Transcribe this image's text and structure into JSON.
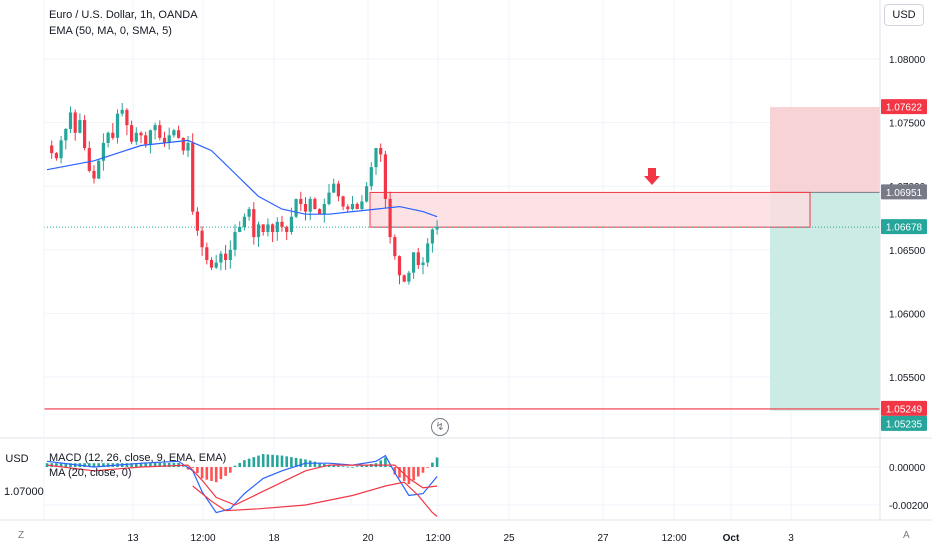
{
  "header": {
    "symbol_title": "Euro / U.S. Dollar, 1h, OANDA",
    "indicator_label": "EMA (50, MA, 0, SMA, 5)"
  },
  "currency_button": "USD",
  "macd_panel": {
    "currency_label": "USD",
    "legend_macd": "MACD (12, 26, close, 9, EMA, EMA)",
    "legend_ma": "MA (20, close, 0)",
    "left_price": "1.07000"
  },
  "corner": {
    "left": "Z",
    "right": "A"
  },
  "alert_icon": "alarm-clock-icon",
  "colors": {
    "up": "#26a69a",
    "down": "#f23645",
    "ema": "#2962ff",
    "stop_zone": "#f7d3d5",
    "target_zone": "#cbebe4",
    "entry_box": "#fddde0",
    "macd_line": "#2962ff",
    "signal_line": "#f23645"
  },
  "chart_data": [
    {
      "type": "candlestick",
      "title": "Euro / U.S. Dollar, 1h, OANDA",
      "xlabel": "",
      "ylabel": "",
      "x_tick_labels": [
        "13",
        "12:00",
        "18",
        "20",
        "12:00",
        "25",
        "27",
        "12:00",
        "Oct",
        "3"
      ],
      "y_ticks": [
        "1.08000",
        "1.07500",
        "1.07000",
        "1.06500",
        "1.06000",
        "1.05500"
      ],
      "ylim": [
        1.0508,
        1.0845
      ],
      "price_path": [
        [
          0,
          1.0732
        ],
        [
          1,
          1.0726
        ],
        [
          2,
          1.0722
        ],
        [
          3,
          1.0736
        ],
        [
          4,
          1.0745
        ],
        [
          5,
          1.0758
        ],
        [
          6,
          1.0742
        ],
        [
          7,
          1.0752
        ],
        [
          8,
          1.073
        ],
        [
          9,
          1.0712
        ],
        [
          10,
          1.0706
        ],
        [
          11,
          1.072
        ],
        [
          12,
          1.0734
        ],
        [
          13,
          1.0742
        ],
        [
          14,
          1.0738
        ],
        [
          15,
          1.0757
        ],
        [
          16,
          1.076
        ],
        [
          17,
          1.0748
        ],
        [
          18,
          1.0735
        ],
        [
          19,
          1.0742
        ],
        [
          20,
          1.074
        ],
        [
          21,
          1.0733
        ],
        [
          22,
          1.0744
        ],
        [
          23,
          1.0748
        ],
        [
          24,
          1.0738
        ],
        [
          25,
          1.0734
        ],
        [
          26,
          1.074
        ],
        [
          27,
          1.0744
        ],
        [
          28,
          1.0738
        ],
        [
          29,
          1.0728
        ],
        [
          30,
          1.0734
        ],
        [
          31,
          1.068
        ],
        [
          32,
          1.0665
        ],
        [
          33,
          1.0652
        ],
        [
          34,
          1.0642
        ],
        [
          35,
          1.0636
        ],
        [
          36,
          1.064
        ],
        [
          37,
          1.0647
        ],
        [
          38,
          1.0642
        ],
        [
          39,
          1.065
        ],
        [
          40,
          1.0664
        ],
        [
          41,
          1.0668
        ],
        [
          42,
          1.0676
        ],
        [
          43,
          1.0682
        ],
        [
          44,
          1.066
        ],
        [
          45,
          1.067
        ],
        [
          46,
          1.0664
        ],
        [
          47,
          1.067
        ],
        [
          48,
          1.0664
        ],
        [
          49,
          1.0672
        ],
        [
          50,
          1.0668
        ],
        [
          51,
          1.0664
        ],
        [
          52,
          1.0676
        ],
        [
          53,
          1.069
        ],
        [
          54,
          1.0686
        ],
        [
          55,
          1.068
        ],
        [
          56,
          1.069
        ],
        [
          57,
          1.0682
        ],
        [
          58,
          1.0678
        ],
        [
          59,
          1.0686
        ],
        [
          60,
          1.0695
        ],
        [
          61,
          1.0702
        ],
        [
          62,
          1.0692
        ],
        [
          63,
          1.0684
        ],
        [
          64,
          1.0682
        ],
        [
          65,
          1.0686
        ],
        [
          66,
          1.0682
        ],
        [
          67,
          1.0688
        ],
        [
          68,
          1.07
        ],
        [
          69,
          1.0715
        ],
        [
          70,
          1.073
        ],
        [
          71,
          1.0725
        ],
        [
          72,
          1.069
        ],
        [
          73,
          1.066
        ],
        [
          74,
          1.0645
        ],
        [
          75,
          1.063
        ],
        [
          76,
          1.0625
        ],
        [
          77,
          1.0632
        ],
        [
          78,
          1.0648
        ],
        [
          79,
          1.0638
        ],
        [
          80,
          1.064
        ],
        [
          81,
          1.0655
        ],
        [
          82,
          1.0666
        ],
        [
          83,
          1.0668
        ]
      ],
      "ema_50": [
        [
          0,
          1.0713
        ],
        [
          10,
          1.072
        ],
        [
          20,
          1.0732
        ],
        [
          30,
          1.0736
        ],
        [
          35,
          1.0728
        ],
        [
          40,
          1.071
        ],
        [
          45,
          1.0692
        ],
        [
          50,
          1.0682
        ],
        [
          55,
          1.0678
        ],
        [
          60,
          1.0678
        ],
        [
          65,
          1.068
        ],
        [
          70,
          1.0682
        ],
        [
          75,
          1.0684
        ],
        [
          80,
          1.068
        ],
        [
          83,
          1.0676
        ]
      ],
      "current_price": 1.06678,
      "price_labels": [
        {
          "value": "1.07622",
          "kind": "stop"
        },
        {
          "value": "1.06951",
          "kind": "entry"
        },
        {
          "value": "1.06678",
          "kind": "current"
        },
        {
          "value": "1.05249",
          "kind": "support"
        },
        {
          "value": "1.05235",
          "kind": "target"
        }
      ],
      "position": {
        "side": "short",
        "stop": 1.07622,
        "entry": 1.06951,
        "target": 1.05235
      },
      "zone_box": {
        "top": 1.06951,
        "bottom": 1.06678
      },
      "horizontal_line": 1.05249,
      "grid": true
    },
    {
      "type": "bar",
      "title": "MACD (12, 26, close, 9, EMA, EMA)",
      "y_ticks": [
        "0.00000",
        "-0.00200"
      ],
      "ylim": [
        -0.0027,
        0.001
      ],
      "macd_line": [
        [
          0,
          0.0003
        ],
        [
          10,
          0.0
        ],
        [
          20,
          0.0002
        ],
        [
          28,
          0.0003
        ],
        [
          31,
          -0.0002
        ],
        [
          33,
          -0.0013
        ],
        [
          36,
          -0.0024
        ],
        [
          39,
          -0.0022
        ],
        [
          42,
          -0.0014
        ],
        [
          46,
          -0.0006
        ],
        [
          50,
          -0.0002
        ],
        [
          55,
          0.0002
        ],
        [
          60,
          0.0002
        ],
        [
          65,
          0.0001
        ],
        [
          70,
          0.0003
        ],
        [
          72,
          0.0006
        ],
        [
          74,
          -0.0003
        ],
        [
          77,
          -0.0015
        ],
        [
          80,
          -0.0014
        ],
        [
          83,
          -0.0005
        ]
      ],
      "signal_line": [
        [
          0,
          0.0001
        ],
        [
          10,
          -0.0002
        ],
        [
          20,
          0.0
        ],
        [
          30,
          0.0001
        ],
        [
          33,
          -0.0007
        ],
        [
          36,
          -0.0016
        ],
        [
          40,
          -0.002
        ],
        [
          45,
          -0.0014
        ],
        [
          50,
          -0.0008
        ],
        [
          55,
          -0.0002
        ],
        [
          60,
          0.0001
        ],
        [
          65,
          0.0001
        ],
        [
          70,
          0.0001
        ],
        [
          74,
          0.0001
        ],
        [
          77,
          -0.0006
        ],
        [
          80,
          -0.0011
        ],
        [
          83,
          -0.001
        ]
      ],
      "ma_line": [
        [
          31,
          -0.001
        ],
        [
          35,
          -0.0018
        ],
        [
          38,
          -0.0023
        ],
        [
          45,
          -0.0022
        ],
        [
          55,
          -0.002
        ],
        [
          65,
          -0.0015
        ],
        [
          72,
          -0.001
        ],
        [
          76,
          -0.0008
        ],
        [
          79,
          -0.0015
        ],
        [
          82,
          -0.0024
        ],
        [
          83,
          -0.0026
        ]
      ],
      "grid": true
    }
  ]
}
